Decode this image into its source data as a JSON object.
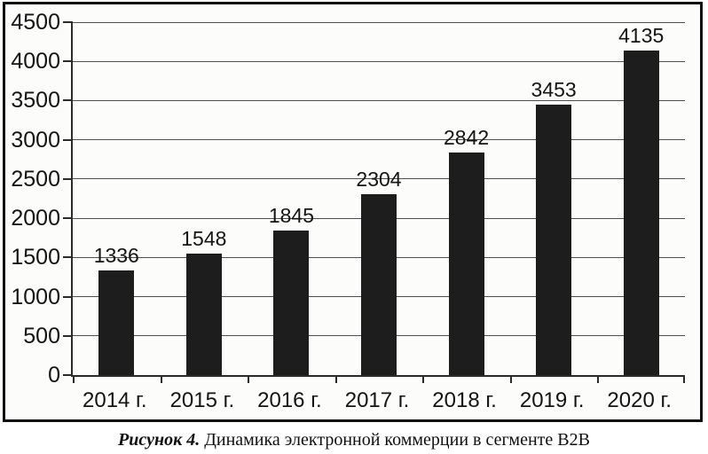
{
  "figure": {
    "caption_label": "Рисунок 4.",
    "caption_text": "Динамика электронной коммерции в сегменте B2B"
  },
  "chart_data": {
    "type": "bar",
    "title": "",
    "xlabel": "",
    "ylabel": "",
    "categories": [
      "2014 г.",
      "2015 г.",
      "2016 г.",
      "2017 г.",
      "2018 г.",
      "2019 г.",
      "2020 г."
    ],
    "values": [
      1336,
      1548,
      1845,
      2304,
      2842,
      3453,
      4135
    ],
    "data_labels": [
      1336,
      1548,
      1845,
      2304,
      2842,
      3453,
      4135
    ],
    "ylim": [
      0,
      4500
    ],
    "yticks": [
      0,
      500,
      1000,
      1500,
      2000,
      2500,
      3000,
      3500,
      4000,
      4500
    ],
    "grid": "horizontal",
    "legend": "none",
    "bar_color": "#1d1d1d",
    "grid_color": "#505050",
    "axis_color": "#2b2b2b",
    "frame_color": "#0f0f0f",
    "background_color": "#fcfcfb",
    "text_color": "#141414"
  }
}
